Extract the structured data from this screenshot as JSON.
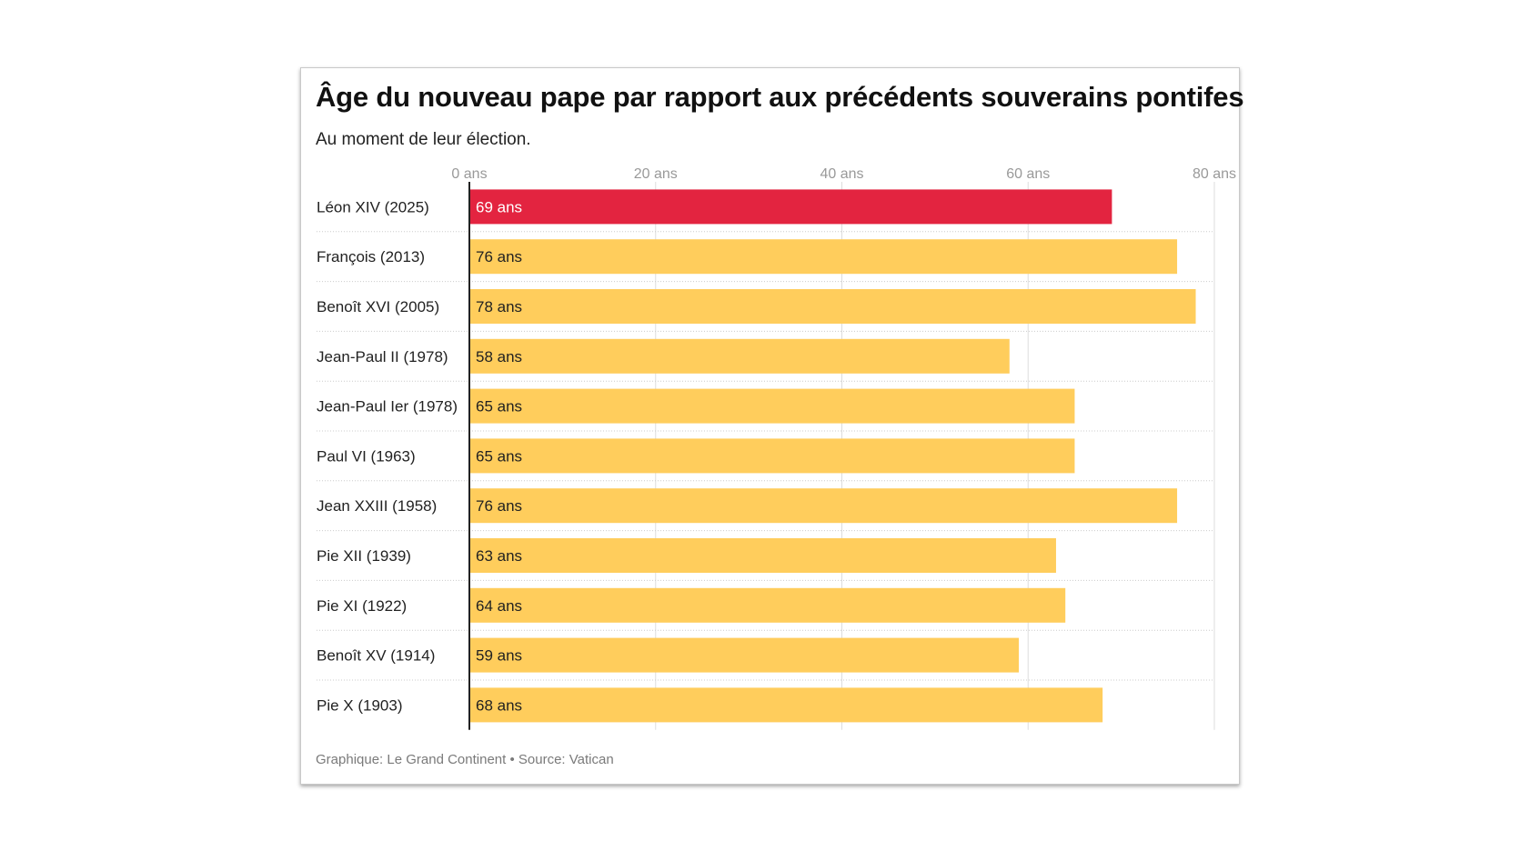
{
  "title": "Âge du nouveau pape par rapport aux précédents souverains pontifes",
  "subtitle": "Au moment de leur élection.",
  "source": "Graphique: Le Grand Continent • Source: Vatican",
  "colors": {
    "highlight": "#e32440",
    "default": "#ffcd5c",
    "grid": "#dddddd",
    "axis": "#222222",
    "tick_text": "#999999"
  },
  "chart_data": {
    "type": "bar",
    "orientation": "horizontal",
    "categories": [
      "Léon XIV (2025)",
      "François (2013)",
      "Benoît XVI (2005)",
      "Jean-Paul II (1978)",
      "Jean-Paul Ier (1978)",
      "Paul VI (1963)",
      "Jean XXIII (1958)",
      "Pie XII (1939)",
      "Pie XI (1922)",
      "Benoît XV (1914)",
      "Pie X (1903)"
    ],
    "values": [
      69,
      76,
      78,
      58,
      65,
      65,
      76,
      63,
      64,
      59,
      68
    ],
    "value_labels": [
      "69 ans",
      "76 ans",
      "78 ans",
      "58 ans",
      "65 ans",
      "65 ans",
      "76 ans",
      "63 ans",
      "64 ans",
      "59 ans",
      "68 ans"
    ],
    "highlight_index": 0,
    "xlim": [
      0,
      80
    ],
    "xticks": [
      0,
      20,
      40,
      60,
      80
    ],
    "xtick_labels": [
      "0 ans",
      "20 ans",
      "40 ans",
      "60 ans",
      "80 ans"
    ],
    "axis_position": "top",
    "grid": true
  }
}
